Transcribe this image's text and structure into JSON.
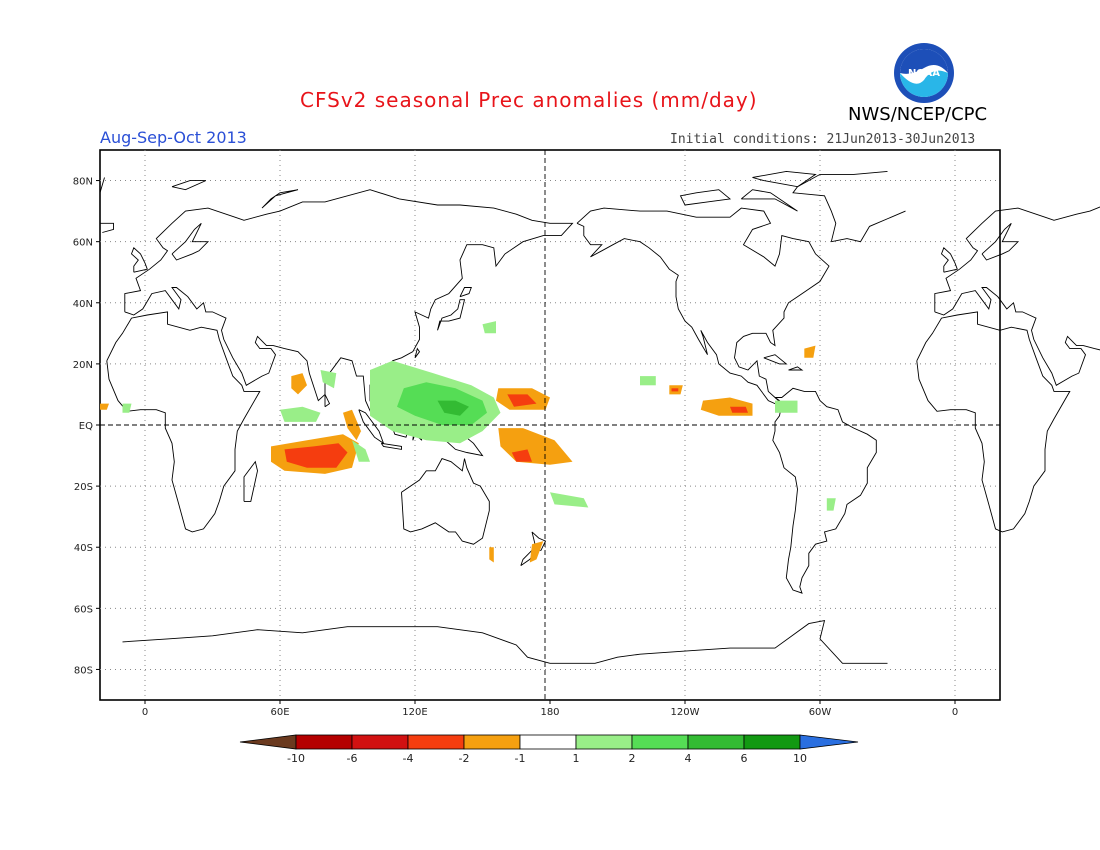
{
  "title": "CFSv2 seasonal Prec anomalies (mm/day)",
  "period": "Aug-Sep-Oct 2013",
  "initial_conditions": "Initial conditions: 21Jun2013-30Jun2013",
  "agency": "NWS/NCEP/CPC",
  "logo_text": "NOAA",
  "lat_labels": [
    "80N",
    "60N",
    "40N",
    "20N",
    "EQ",
    "20S",
    "40S",
    "60S",
    "80S"
  ],
  "lon_labels": [
    "0",
    "60E",
    "120E",
    "180",
    "120W",
    "60W",
    "0"
  ],
  "colorbar": {
    "labels": [
      "-10",
      "-6",
      "-4",
      "-2",
      "-1",
      "1",
      "2",
      "4",
      "6",
      "10"
    ],
    "colors": [
      "#6b3a1f",
      "#b40000",
      "#d21111",
      "#f53d0f",
      "#f5a010",
      "#ffffff",
      "#99ee88",
      "#55dd55",
      "#33bb33",
      "#129912",
      "#2a6fe0"
    ]
  },
  "anomalies": [
    {
      "name": "Indian Ocean south dry band",
      "level": -4,
      "lon": 80,
      "lat": -12
    },
    {
      "name": "Bay of Bengal dry",
      "level": -2,
      "lon": 68,
      "lat": 13
    },
    {
      "name": "West Pacific north dry",
      "level": -4,
      "lon": 167,
      "lat": 8
    },
    {
      "name": "West Pacific south dry",
      "level": -4,
      "lon": 170,
      "lat": -9
    },
    {
      "name": "Maritime Continent wet",
      "level": 4,
      "lon": 140,
      "lat": 7
    },
    {
      "name": "Arabian Sea wet",
      "level": 2,
      "lon": 68,
      "lat": 4
    },
    {
      "name": "East Pacific ITCZ dry",
      "level": -4,
      "lon": -95,
      "lat": 5
    },
    {
      "name": "South Pacific wet",
      "level": 2,
      "lon": -174,
      "lat": -25
    },
    {
      "name": "New Zealand dry",
      "level": -2,
      "lon": 173,
      "lat": -42
    }
  ]
}
